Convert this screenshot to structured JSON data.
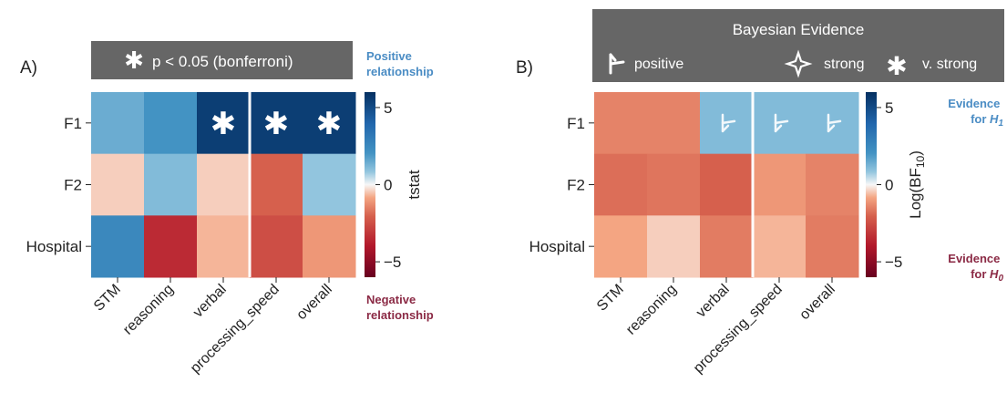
{
  "chart_data": [
    {
      "type": "heatmap",
      "panel_label": "A)",
      "legend_box": {
        "marker": "✱",
        "text": "p < 0.05 (bonferroni)"
      },
      "rows": [
        "F1",
        "F2",
        "Hospital"
      ],
      "columns": [
        "STM",
        "reasoning",
        "verbal",
        "processing_speed",
        "overall"
      ],
      "values": [
        [
          1.5,
          2.0,
          5.5,
          5.5,
          5.5
        ],
        [
          -0.5,
          1.2,
          -0.5,
          -2.0,
          1.0
        ],
        [
          2.5,
          -3.5,
          -0.8,
          -2.5,
          -1.2
        ]
      ],
      "significant": [
        [
          false,
          false,
          true,
          true,
          true
        ],
        [
          false,
          false,
          false,
          false,
          false
        ],
        [
          false,
          false,
          false,
          false,
          false
        ]
      ],
      "colorbar": {
        "label": "tstat",
        "ticks": [
          "5",
          "0",
          "−5"
        ],
        "tick_values": [
          5,
          0,
          -5
        ],
        "range": [
          -6,
          6
        ]
      },
      "top_note": "Positive relationship",
      "bottom_note": "Negative relationship",
      "separator_after_column": 2
    },
    {
      "type": "heatmap",
      "panel_label": "B)",
      "legend_box": {
        "title": "Bayesian Evidence",
        "items": [
          {
            "icon": "positive-evidence-icon",
            "label": "positive"
          },
          {
            "icon": "strong-evidence-icon",
            "label": "strong"
          },
          {
            "icon": "very-strong-evidence-icon",
            "label": "v. strong"
          }
        ]
      },
      "rows": [
        "F1",
        "F2",
        "Hospital"
      ],
      "columns": [
        "STM",
        "reasoning",
        "verbal",
        "processing_speed",
        "overall"
      ],
      "values": [
        [
          -1.5,
          -1.5,
          1.2,
          1.2,
          1.2
        ],
        [
          -1.8,
          -1.7,
          -2.0,
          -1.2,
          -1.5
        ],
        [
          -1.0,
          -0.5,
          -1.6,
          -0.8,
          -1.6
        ]
      ],
      "evidence": [
        [
          null,
          null,
          "positive",
          "positive",
          "positive"
        ],
        [
          null,
          null,
          null,
          null,
          null
        ],
        [
          null,
          null,
          null,
          null,
          null
        ]
      ],
      "colorbar": {
        "label": "Log(BF10)",
        "ticks": [
          "5",
          "0",
          "−5"
        ],
        "tick_values": [
          5,
          0,
          -5
        ],
        "range": [
          -6,
          6
        ]
      },
      "top_note": "Evidence for H1",
      "bottom_note": "Evidence for H0",
      "separator_after_column": 2
    }
  ],
  "colors": {
    "positive_text": "#4a8cc4",
    "negative_text": "#8b2a45",
    "legend_box": "#666666",
    "separator": "#ffffff"
  }
}
